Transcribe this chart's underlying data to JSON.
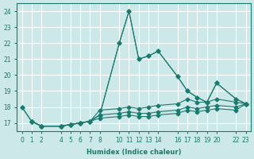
{
  "xlabel": "Humidex (Indice chaleur)",
  "ylabel": "",
  "bg_color": "#cce8e8",
  "grid_color": "#ffffff",
  "line_color": "#1a7a6e",
  "xlim": [
    -0.5,
    23.5
  ],
  "ylim": [
    16.5,
    24.5
  ],
  "xticks": [
    0,
    1,
    2,
    4,
    5,
    6,
    7,
    8,
    10,
    11,
    12,
    13,
    14,
    16,
    17,
    18,
    19,
    20,
    22,
    23
  ],
  "yticks": [
    17,
    18,
    19,
    20,
    21,
    22,
    23,
    24
  ],
  "lines": [
    {
      "x": [
        0,
        1,
        2,
        4,
        5,
        6,
        7,
        8,
        10,
        11,
        12,
        13,
        14,
        16,
        17,
        18,
        19,
        20,
        22,
        23
      ],
      "y": [
        18.0,
        17.1,
        16.8,
        16.8,
        16.9,
        17.0,
        17.1,
        17.5,
        22.0,
        24.0,
        21.0,
        21.2,
        21.5,
        19.9,
        19.0,
        18.6,
        18.3,
        19.5,
        18.5,
        18.2
      ]
    },
    {
      "x": [
        0,
        1,
        2,
        4,
        5,
        6,
        7,
        8,
        10,
        11,
        12,
        13,
        14,
        16,
        17,
        18,
        19,
        20,
        22,
        23
      ],
      "y": [
        18.0,
        17.1,
        16.8,
        16.8,
        16.9,
        17.0,
        17.1,
        17.5,
        22.0,
        24.0,
        21.0,
        21.2,
        21.5,
        19.9,
        19.0,
        18.6,
        18.3,
        19.5,
        18.5,
        18.2
      ]
    },
    {
      "x": [
        1,
        2,
        4,
        5,
        6,
        7,
        8,
        10,
        11,
        12,
        13,
        14,
        16,
        17,
        18,
        19,
        20,
        22,
        23
      ],
      "y": [
        17.1,
        16.8,
        16.8,
        16.9,
        17.0,
        17.1,
        17.8,
        17.9,
        18.0,
        17.9,
        18.0,
        18.1,
        18.2,
        18.5,
        18.3,
        18.3,
        18.5,
        18.3,
        18.2
      ]
    },
    {
      "x": [
        1,
        2,
        4,
        5,
        6,
        7,
        8,
        10,
        11,
        12,
        13,
        14,
        16,
        17,
        18,
        19,
        20,
        22,
        23
      ],
      "y": [
        17.1,
        16.8,
        16.8,
        16.9,
        17.0,
        17.1,
        17.5,
        17.6,
        17.7,
        17.6,
        17.6,
        17.7,
        17.8,
        18.0,
        17.9,
        18.0,
        18.1,
        18.0,
        18.2
      ]
    },
    {
      "x": [
        1,
        2,
        4,
        5,
        6,
        7,
        8,
        10,
        11,
        12,
        13,
        14,
        16,
        17,
        18,
        19,
        20,
        22,
        23
      ],
      "y": [
        17.1,
        16.8,
        16.8,
        16.9,
        17.0,
        17.1,
        17.3,
        17.4,
        17.5,
        17.4,
        17.4,
        17.5,
        17.6,
        17.8,
        17.7,
        17.8,
        17.9,
        17.8,
        18.2
      ]
    }
  ]
}
